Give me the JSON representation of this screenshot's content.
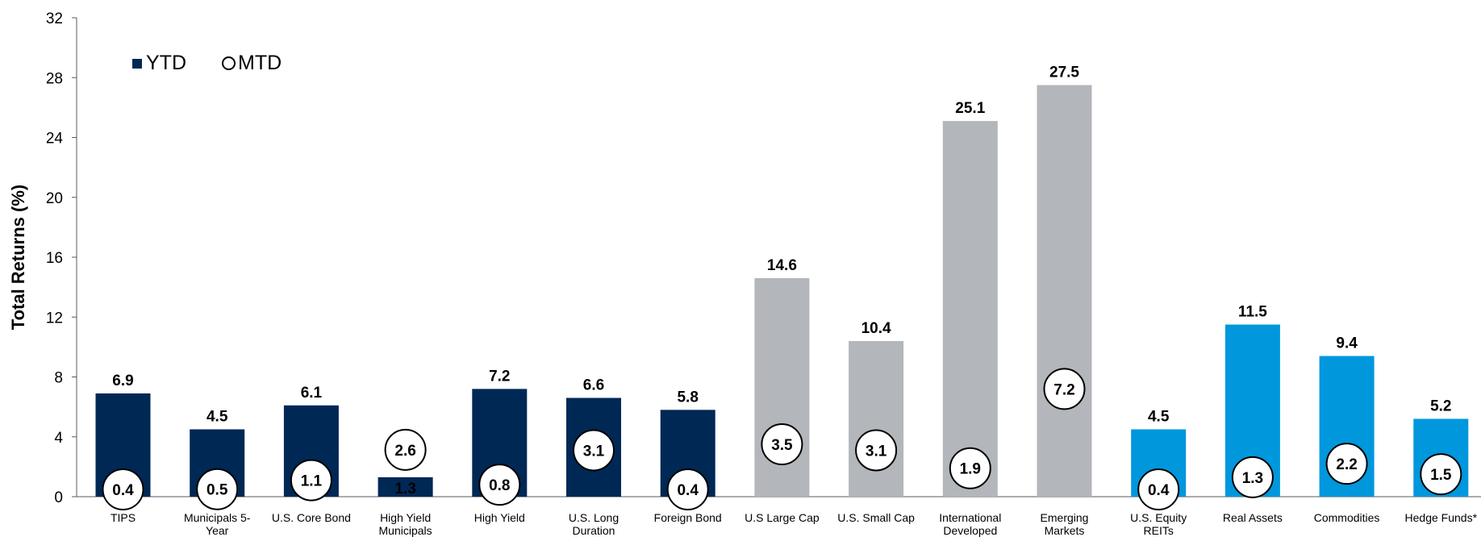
{
  "colors": {
    "fixed_income": "#002855",
    "equity": "#B3B6BA",
    "real_assets": "#0097DC"
  },
  "legend": {
    "ytd": "YTD",
    "mtd": "MTD"
  },
  "chart_data": {
    "type": "bar",
    "ylabel": "Total Returns (%)",
    "ylim": [
      0,
      32
    ],
    "yticks": [
      0,
      4,
      8,
      12,
      16,
      20,
      24,
      28,
      32
    ],
    "categories": [
      [
        "TIPS"
      ],
      [
        "Municipals 5-",
        "Year"
      ],
      [
        "U.S. Core Bond"
      ],
      [
        "High Yield",
        "Municipals"
      ],
      [
        "High Yield"
      ],
      [
        "U.S. Long",
        "Duration"
      ],
      [
        "Foreign Bond"
      ],
      [
        "U.S Large Cap"
      ],
      [
        "U.S. Small Cap"
      ],
      [
        "International",
        "Developed"
      ],
      [
        "Emerging",
        "Markets"
      ],
      [
        "U.S. Equity",
        "REITs"
      ],
      [
        "Real Assets"
      ],
      [
        "Commodities"
      ],
      [
        "Hedge Funds*"
      ]
    ],
    "groups": [
      "fixed_income",
      "fixed_income",
      "fixed_income",
      "fixed_income",
      "fixed_income",
      "fixed_income",
      "fixed_income",
      "equity",
      "equity",
      "equity",
      "equity",
      "real_assets",
      "real_assets",
      "real_assets",
      "real_assets"
    ],
    "series": [
      {
        "name": "YTD",
        "values": [
          6.9,
          4.5,
          6.1,
          1.3,
          7.2,
          6.6,
          5.8,
          14.6,
          10.4,
          25.1,
          27.5,
          4.5,
          11.5,
          9.4,
          5.2
        ]
      },
      {
        "name": "MTD",
        "values": [
          0.4,
          0.5,
          1.1,
          2.6,
          0.8,
          3.1,
          0.4,
          3.5,
          3.1,
          1.9,
          7.2,
          0.4,
          1.3,
          2.2,
          1.5
        ]
      }
    ]
  }
}
